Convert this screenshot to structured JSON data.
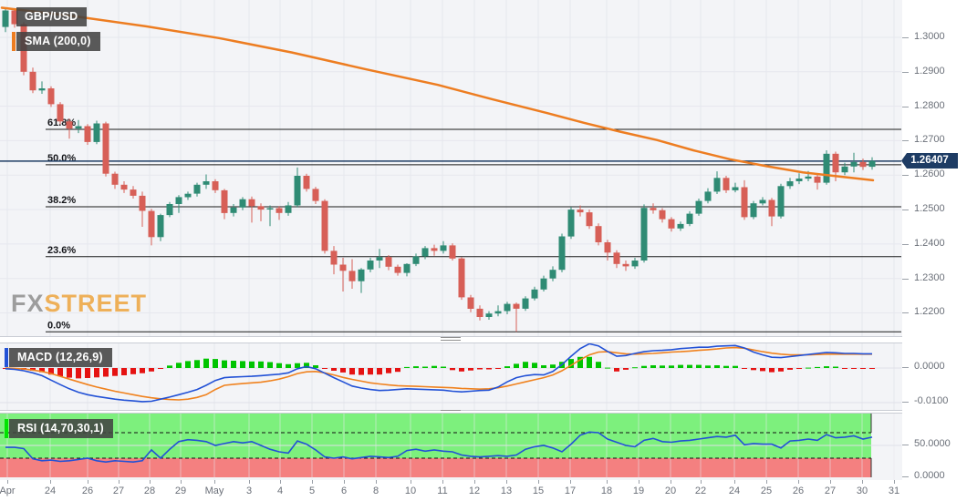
{
  "header": {
    "symbol": "GBP/USD",
    "sma_label": "SMA (200,0)"
  },
  "watermark": {
    "fx": "FX",
    "street": "STREET",
    "fx_color": "#9d9d9d",
    "street_color": "#eeb059"
  },
  "price_badge": "1.26407",
  "panels": {
    "macd": {
      "label": "MACD (12,26,9)"
    },
    "rsi": {
      "label": "RSI (14,70,30,1)"
    }
  },
  "colors": {
    "up": "#2f8b74",
    "down": "#d75f57",
    "sma": "#ed7d21",
    "macd_line": "#2251d6",
    "signal_line": "#f0821e",
    "hist_up": "#00c400",
    "hist_down": "#e51212",
    "rsi_line": "#2251d6",
    "band_green": "#7df07d",
    "band_red": "#f48080",
    "fib": "#1a1a1a",
    "price_line": "#1e3c64",
    "badge_bg": "#1e3c64",
    "grid": "#e6e7ee",
    "grid_soft": "#dfe1e8",
    "axis_text": "#6a6f78"
  },
  "chart_data": {
    "type": "candlestick+indicators",
    "symbol": "GBP/USD",
    "last_price": 1.26407,
    "price_axis": {
      "range": [
        1.214,
        1.311
      ],
      "ticks": [
        {
          "label": "1.3000",
          "value": 1.3
        },
        {
          "label": "1.2900",
          "value": 1.29
        },
        {
          "label": "1.2800",
          "value": 1.28
        },
        {
          "label": "1.2700",
          "value": 1.27
        },
        {
          "label": "1.2600",
          "value": 1.26
        },
        {
          "label": "1.2500",
          "value": 1.25
        },
        {
          "label": "1.2400",
          "value": 1.24
        },
        {
          "label": "1.2300",
          "value": 1.23
        },
        {
          "label": "1.2200",
          "value": 1.22
        }
      ]
    },
    "x_ticks": [
      [
        "Apr",
        8
      ],
      [
        "24",
        55
      ],
      [
        "26",
        96
      ],
      [
        "27",
        130
      ],
      [
        "28",
        164
      ],
      [
        "29",
        198
      ],
      [
        "May",
        235
      ],
      [
        "3",
        273
      ],
      [
        "4",
        307
      ],
      [
        "5",
        342
      ],
      [
        "6",
        377
      ],
      [
        "8",
        412
      ],
      [
        "10",
        450
      ],
      [
        "11",
        485
      ],
      [
        "12",
        520
      ],
      [
        "13",
        555
      ],
      [
        "15",
        590
      ],
      [
        "17",
        625
      ],
      [
        "18",
        665
      ],
      [
        "19",
        700
      ],
      [
        "20",
        735
      ],
      [
        "22",
        768
      ],
      [
        "24",
        805
      ],
      [
        "25",
        840
      ],
      [
        "26",
        875
      ],
      [
        "27",
        910
      ],
      [
        "30",
        945
      ],
      [
        "31",
        980
      ]
    ],
    "fib_levels": [
      [
        "61.8%",
        1.2733
      ],
      [
        "50.0%",
        1.263
      ],
      [
        "38.2%",
        1.2508
      ],
      [
        "23.6%",
        1.2363
      ],
      [
        "0.0%",
        1.2145
      ]
    ],
    "sma200": [
      [
        2,
        1.3086
      ],
      [
        80,
        1.3062
      ],
      [
        160,
        1.3032
      ],
      [
        240,
        1.2998
      ],
      [
        320,
        1.2956
      ],
      [
        400,
        1.2908
      ],
      [
        480,
        1.2862
      ],
      [
        540,
        1.282
      ],
      [
        600,
        1.278
      ],
      [
        640,
        1.2752
      ],
      [
        680,
        1.2726
      ],
      [
        720,
        1.2702
      ],
      [
        760,
        1.2672
      ],
      [
        800,
        1.2646
      ],
      [
        840,
        1.2626
      ],
      [
        880,
        1.2608
      ],
      [
        920,
        1.2596
      ],
      [
        957,
        1.2585
      ]
    ],
    "candles": [
      [
        1.303,
        1.3085,
        1.3015,
        1.3078
      ],
      [
        1.3078,
        1.3082,
        1.3028,
        1.3038
      ],
      [
        1.3038,
        1.3044,
        1.289,
        1.29
      ],
      [
        1.29,
        1.2912,
        1.2838,
        1.2846
      ],
      [
        1.2846,
        1.2872,
        1.2836,
        1.2852
      ],
      [
        1.2852,
        1.2858,
        1.2798,
        1.2806
      ],
      [
        1.2806,
        1.2812,
        1.2748,
        1.2756
      ],
      [
        1.2756,
        1.2764,
        1.2706,
        1.2735
      ],
      [
        1.2735,
        1.276,
        1.2722,
        1.2742
      ],
      [
        1.2742,
        1.2748,
        1.2688,
        1.2696
      ],
      [
        1.2696,
        1.2758,
        1.269,
        1.275
      ],
      [
        1.275,
        1.2755,
        1.2596,
        1.2604
      ],
      [
        1.2604,
        1.261,
        1.256,
        1.2572
      ],
      [
        1.2572,
        1.2582,
        1.2548,
        1.2558
      ],
      [
        1.2558,
        1.2568,
        1.2532,
        1.254
      ],
      [
        1.254,
        1.2552,
        1.245,
        1.2496
      ],
      [
        1.2496,
        1.2502,
        1.2396,
        1.242
      ],
      [
        1.242,
        1.2488,
        1.2408,
        1.2484
      ],
      [
        1.2484,
        1.2522,
        1.2478,
        1.2516
      ],
      [
        1.2516,
        1.2542,
        1.249,
        1.2536
      ],
      [
        1.2536,
        1.2552,
        1.2528,
        1.2546
      ],
      [
        1.2546,
        1.2578,
        1.2538,
        1.2572
      ],
      [
        1.2572,
        1.2602,
        1.256,
        1.2582
      ],
      [
        1.2582,
        1.2588,
        1.2548,
        1.2556
      ],
      [
        1.2556,
        1.256,
        1.2472,
        1.249
      ],
      [
        1.249,
        1.2516,
        1.248,
        1.2506
      ],
      [
        1.2506,
        1.2536,
        1.2498,
        1.253
      ],
      [
        1.253,
        1.2538,
        1.2462,
        1.251
      ],
      [
        1.251,
        1.2518,
        1.2466,
        1.25
      ],
      [
        1.25,
        1.2512,
        1.2452,
        1.2504
      ],
      [
        1.2504,
        1.251,
        1.247,
        1.249
      ],
      [
        1.249,
        1.2522,
        1.2482,
        1.2512
      ],
      [
        1.2512,
        1.2622,
        1.2506,
        1.2598
      ],
      [
        1.2598,
        1.2604,
        1.2552,
        1.256
      ],
      [
        1.256,
        1.2566,
        1.2516,
        1.2525
      ],
      [
        1.2525,
        1.253,
        1.2372,
        1.238
      ],
      [
        1.238,
        1.2394,
        1.2312,
        1.234
      ],
      [
        1.234,
        1.236,
        1.2262,
        1.2322
      ],
      [
        1.2322,
        1.2356,
        1.227,
        1.2292
      ],
      [
        1.2292,
        1.233,
        1.2258,
        1.2326
      ],
      [
        1.2326,
        1.236,
        1.2318,
        1.2352
      ],
      [
        1.2352,
        1.2386,
        1.233,
        1.2362
      ],
      [
        1.2362,
        1.2368,
        1.2324,
        1.2334
      ],
      [
        1.2334,
        1.234,
        1.2308,
        1.2316
      ],
      [
        1.2316,
        1.2344,
        1.2306,
        1.2342
      ],
      [
        1.2342,
        1.2372,
        1.2336,
        1.2364
      ],
      [
        1.2364,
        1.2394,
        1.2356,
        1.2388
      ],
      [
        1.2388,
        1.2398,
        1.2366,
        1.238
      ],
      [
        1.238,
        1.2408,
        1.2372,
        1.2396
      ],
      [
        1.2396,
        1.2402,
        1.2352,
        1.2358
      ],
      [
        1.2358,
        1.2362,
        1.2238,
        1.2245
      ],
      [
        1.2245,
        1.2252,
        1.2202,
        1.2212
      ],
      [
        1.2212,
        1.2222,
        1.2178,
        1.2188
      ],
      [
        1.2188,
        1.2205,
        1.218,
        1.2198
      ],
      [
        1.2198,
        1.2222,
        1.219,
        1.2205
      ],
      [
        1.2205,
        1.2232,
        1.2196,
        1.2226
      ],
      [
        1.2226,
        1.223,
        1.2145,
        1.2212
      ],
      [
        1.2212,
        1.2248,
        1.2206,
        1.2242
      ],
      [
        1.2242,
        1.2276,
        1.2236,
        1.2268
      ],
      [
        1.2268,
        1.2308,
        1.2262,
        1.23
      ],
      [
        1.23,
        1.2335,
        1.2292,
        1.2325
      ],
      [
        1.2325,
        1.243,
        1.2318,
        1.2422
      ],
      [
        1.2422,
        1.2508,
        1.2415,
        1.25
      ],
      [
        1.25,
        1.2512,
        1.248,
        1.2492
      ],
      [
        1.2492,
        1.25,
        1.2444,
        1.2452
      ],
      [
        1.2452,
        1.246,
        1.2396,
        1.2405
      ],
      [
        1.2405,
        1.2412,
        1.2352,
        1.2375
      ],
      [
        1.2375,
        1.2382,
        1.233,
        1.2342
      ],
      [
        1.2342,
        1.2352,
        1.2322,
        1.2335
      ],
      [
        1.2335,
        1.236,
        1.2328,
        1.2352
      ],
      [
        1.2352,
        1.2515,
        1.2346,
        1.2505
      ],
      [
        1.2505,
        1.2518,
        1.2488,
        1.2498
      ],
      [
        1.2498,
        1.2504,
        1.2462,
        1.2472
      ],
      [
        1.2472,
        1.2478,
        1.2436,
        1.2445
      ],
      [
        1.2445,
        1.2465,
        1.2438,
        1.2458
      ],
      [
        1.2458,
        1.2495,
        1.2452,
        1.2488
      ],
      [
        1.2488,
        1.2532,
        1.2482,
        1.2525
      ],
      [
        1.2525,
        1.2562,
        1.2518,
        1.2552
      ],
      [
        1.2552,
        1.2611,
        1.2545,
        1.2592
      ],
      [
        1.2592,
        1.2598,
        1.2548,
        1.2556
      ],
      [
        1.2556,
        1.2578,
        1.255,
        1.2565
      ],
      [
        1.2565,
        1.2585,
        1.247,
        1.2478
      ],
      [
        1.2478,
        1.2525,
        1.2472,
        1.2518
      ],
      [
        1.2518,
        1.2536,
        1.2512,
        1.2528
      ],
      [
        1.2528,
        1.2534,
        1.2452,
        1.248
      ],
      [
        1.248,
        1.2575,
        1.2474,
        1.2568
      ],
      [
        1.2568,
        1.2592,
        1.256,
        1.2582
      ],
      [
        1.2582,
        1.2605,
        1.2574,
        1.259
      ],
      [
        1.259,
        1.2612,
        1.2582,
        1.2596
      ],
      [
        1.2596,
        1.2602,
        1.2558,
        1.2578
      ],
      [
        1.2578,
        1.2672,
        1.2572,
        1.2662
      ],
      [
        1.2662,
        1.2668,
        1.2582,
        1.2608
      ],
      [
        1.2608,
        1.2636,
        1.26,
        1.2625
      ],
      [
        1.2625,
        1.2665,
        1.2608,
        1.2638
      ],
      [
        1.2638,
        1.2648,
        1.2615,
        1.2624
      ],
      [
        1.2624,
        1.2652,
        1.2616,
        1.2641
      ]
    ],
    "macd_axis": {
      "ticks": [
        {
          "label": "0.0000",
          "value": 0
        },
        {
          "label": "-0.0100",
          "value": -0.01
        }
      ]
    },
    "macd": [
      -0.0002,
      -0.0004,
      -0.0008,
      -0.0014,
      -0.0022,
      -0.0035,
      -0.0048,
      -0.006,
      -0.007,
      -0.0077,
      -0.0082,
      -0.0086,
      -0.009,
      -0.0093,
      -0.0095,
      -0.0097,
      -0.0096,
      -0.009,
      -0.0084,
      -0.0077,
      -0.007,
      -0.0062,
      -0.005,
      -0.0036,
      -0.0028,
      -0.0026,
      -0.0025,
      -0.0024,
      -0.0022,
      -0.002,
      -0.0018,
      -0.0014,
      -0.0002,
      0.0004,
      -0.0002,
      -0.0015,
      -0.0028,
      -0.004,
      -0.0052,
      -0.0058,
      -0.0062,
      -0.0065,
      -0.0064,
      -0.0062,
      -0.006,
      -0.0061,
      -0.0062,
      -0.0063,
      -0.0064,
      -0.0067,
      -0.0069,
      -0.0067,
      -0.0065,
      -0.0064,
      -0.0055,
      -0.004,
      -0.0028,
      -0.0022,
      -0.0019,
      -0.002,
      -0.001,
      0.001,
      0.0034,
      0.0056,
      0.007,
      0.0064,
      0.0048,
      0.0034,
      0.0036,
      0.0042,
      0.0047,
      0.005,
      0.0051,
      0.0053,
      0.0056,
      0.0058,
      0.006,
      0.006,
      0.0063,
      0.0064,
      0.0065,
      0.0058,
      0.0046,
      0.0038,
      0.0031,
      0.003,
      0.0033,
      0.0036,
      0.0039,
      0.0042,
      0.0045,
      0.0044,
      0.0042,
      0.0042,
      0.0041,
      0.0041
    ],
    "macd_signal": [
      0.0,
      -0.0001,
      -0.0003,
      -0.0006,
      -0.001,
      -0.0016,
      -0.0024,
      -0.0032,
      -0.004,
      -0.0048,
      -0.0055,
      -0.0061,
      -0.0067,
      -0.0072,
      -0.0077,
      -0.0082,
      -0.0086,
      -0.0089,
      -0.0091,
      -0.0092,
      -0.009,
      -0.0085,
      -0.0077,
      -0.0062,
      -0.005,
      -0.0047,
      -0.0045,
      -0.0043,
      -0.0041,
      -0.0037,
      -0.0032,
      -0.0025,
      -0.0016,
      -0.0011,
      -0.001,
      -0.0014,
      -0.002,
      -0.0027,
      -0.0033,
      -0.0038,
      -0.0043,
      -0.0046,
      -0.0049,
      -0.0051,
      -0.0052,
      -0.0053,
      -0.0054,
      -0.0055,
      -0.0056,
      -0.0057,
      -0.0059,
      -0.006,
      -0.0061,
      -0.006,
      -0.0057,
      -0.0052,
      -0.0046,
      -0.004,
      -0.0034,
      -0.0028,
      -0.002,
      -0.0008,
      0.0008,
      0.0024,
      0.0038,
      0.0046,
      0.0047,
      0.0044,
      0.0041,
      0.004,
      0.0041,
      0.0042,
      0.0044,
      0.0046,
      0.0047,
      0.0049,
      0.0051,
      0.0053,
      0.0055,
      0.0058,
      0.0059,
      0.0057,
      0.0052,
      0.0047,
      0.0043,
      0.004,
      0.0038,
      0.0038,
      0.0038,
      0.0039,
      0.004,
      0.004,
      0.004,
      0.004,
      0.004,
      0.004
    ],
    "macd_histogram": [
      -0.0002,
      -0.0003,
      -0.0005,
      -0.0008,
      -0.0012,
      -0.0019,
      -0.0024,
      -0.0028,
      -0.003,
      -0.0029,
      -0.0027,
      -0.0025,
      -0.0023,
      -0.0021,
      -0.0018,
      -0.0015,
      -0.001,
      -0.0001,
      0.0007,
      0.0015,
      0.002,
      0.0023,
      0.0027,
      0.0026,
      0.0022,
      0.0021,
      0.002,
      0.0019,
      0.0019,
      0.0017,
      0.0014,
      0.0011,
      0.0014,
      0.0015,
      0.0008,
      -0.0001,
      -0.0008,
      -0.0013,
      -0.0019,
      -0.002,
      -0.0019,
      -0.0019,
      -0.0015,
      -0.0011,
      0.0003,
      0.0005,
      0.0004,
      0.0006,
      0.0004,
      -0.0006,
      -0.001,
      -0.0007,
      -0.0004,
      -0.0004,
      -0.0002,
      0.0005,
      0.0012,
      0.0018,
      0.0015,
      0.0008,
      0.001,
      0.0018,
      0.0026,
      0.0032,
      0.0032,
      0.0018,
      0.0001,
      -0.001,
      -0.0005,
      0.0002,
      0.0006,
      0.0008,
      0.0007,
      0.0007,
      0.0009,
      0.0009,
      0.0009,
      0.0007,
      0.0008,
      0.0006,
      0.0006,
      -0.0001,
      -0.0006,
      -0.0009,
      -0.0012,
      -0.001,
      -0.0005,
      -0.0002,
      0.0001,
      0.0003,
      0.0005,
      0.0004,
      -0.0002,
      -0.0002,
      -0.0002,
      -0.0002
    ],
    "rsi_axis": {
      "ticks": [
        {
          "label": "50.0000",
          "value": 50
        },
        {
          "label": "0.0000",
          "value": 0
        }
      ],
      "overbought": 70,
      "oversold": 30
    },
    "rsi": [
      47,
      47,
      45,
      29,
      26,
      27,
      25,
      26,
      28,
      30,
      26,
      24,
      26,
      25,
      24,
      26,
      43,
      30,
      44,
      56,
      59,
      58,
      56,
      50,
      53,
      56,
      54,
      56,
      50,
      44,
      40,
      38,
      57,
      52,
      43,
      32,
      30,
      32,
      29,
      31,
      33,
      32,
      31,
      33,
      42,
      44,
      41,
      43,
      41,
      40,
      35,
      33,
      32,
      33,
      34,
      33,
      35,
      44,
      48,
      50,
      46,
      40,
      52,
      66,
      71,
      70,
      60,
      55,
      50,
      48,
      58,
      61,
      56,
      55,
      57,
      58,
      60,
      62,
      64,
      63,
      66,
      51,
      53,
      52,
      52,
      46,
      57,
      58,
      60,
      58,
      67,
      62,
      63,
      65,
      60,
      63
    ]
  }
}
